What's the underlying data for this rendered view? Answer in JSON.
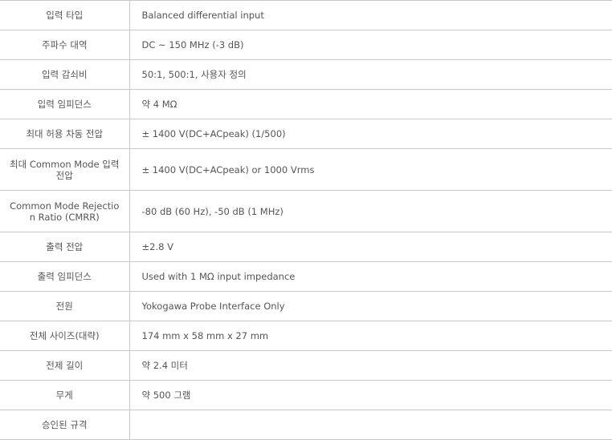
{
  "specs": [
    {
      "label": "입력 타입",
      "value": "Balanced differential input"
    },
    {
      "label": "주파수 대역",
      "value": "DC ~ 150 MHz (-3 dB)"
    },
    {
      "label": "입력 감쇠비",
      "value": "50:1, 500:1, 사용자 정의"
    },
    {
      "label": "입력 임피던스",
      "value": "약 4 MΩ"
    },
    {
      "label": "최대 허용 차동 전압",
      "value": "± 1400 V(DC+ACpeak) (1/500)"
    },
    {
      "label": "최대 Common Mode 입력 전압",
      "value": "± 1400 V(DC+ACpeak) or 1000 Vrms"
    },
    {
      "label": "Common Mode Rejection Ratio (CMRR)",
      "value": "-80 dB (60 Hz), -50 dB (1 MHz)"
    },
    {
      "label": "출력 전압",
      "value": "±2.8 V"
    },
    {
      "label": "출력 임피던스",
      "value": "Used with 1 MΩ input impedance"
    },
    {
      "label": "전원",
      "value": "Yokogawa Probe Interface Only"
    },
    {
      "label": "전체 사이즈(대략)",
      "value": "174 mm x 58 mm x 27 mm"
    },
    {
      "label": "전제 길이",
      "value": "약 2.4 미터"
    },
    {
      "label": "무게",
      "value": "약 500 그램"
    },
    {
      "label": "승인된 규격",
      "value": ""
    }
  ]
}
